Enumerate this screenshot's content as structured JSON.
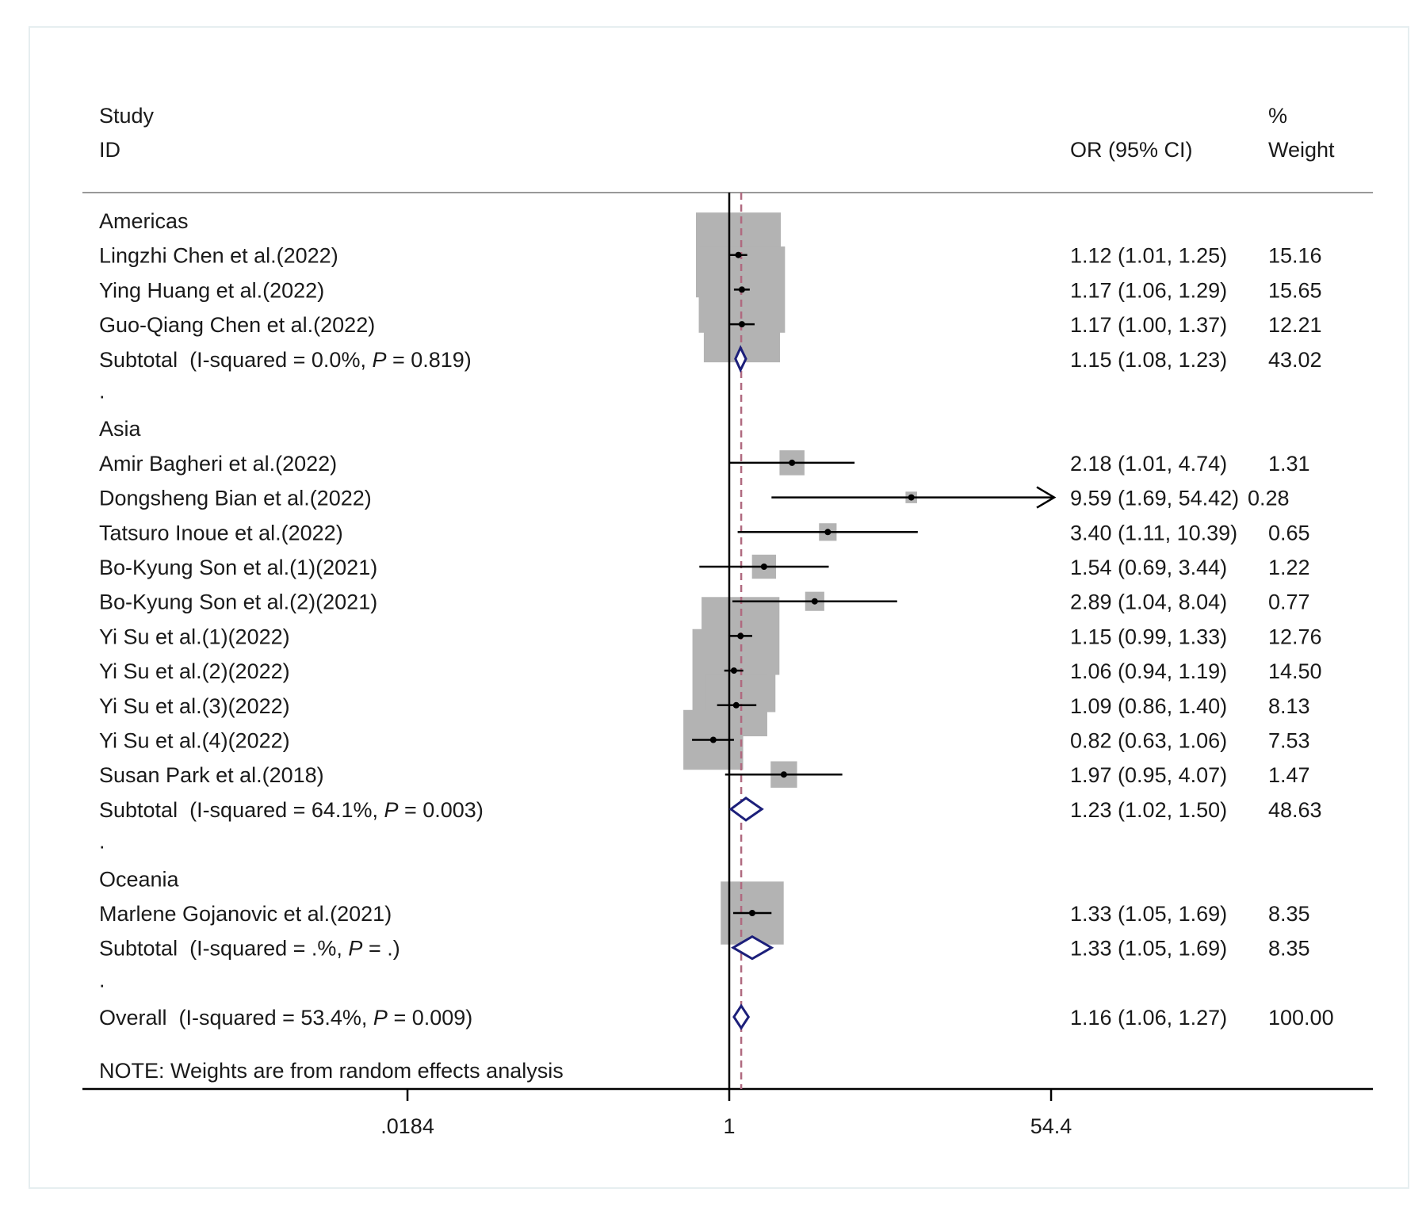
{
  "header": {
    "study_line1": "Study",
    "study_line2": "ID",
    "or_label": "OR (95% CI)",
    "weight_line1": "%",
    "weight_line2": "Weight"
  },
  "note": "NOTE: Weights are from random effects analysis",
  "colors": {
    "box": "#b3b3b3",
    "diamond": "#1c1f7a",
    "null_line": "#000000",
    "overall_line": "#b06a80",
    "text": "#1a1a1a"
  },
  "chart_data": {
    "type": "forest",
    "scale": "log",
    "null_value": 1,
    "overall_value": 1.16,
    "x_ticks": [
      {
        "value": 0.0184,
        "label": ".0184"
      },
      {
        "value": 1,
        "label": "1"
      },
      {
        "value": 54.4,
        "label": "54.4"
      }
    ],
    "rows": [
      {
        "kind": "group",
        "label": "Americas"
      },
      {
        "kind": "study",
        "label": "Lingzhi Chen et al.(2022)",
        "or": 1.12,
        "lo": 1.01,
        "hi": 1.25,
        "ci_text": "1.12 (1.01, 1.25)",
        "weight": 15.16,
        "weight_text": "15.16"
      },
      {
        "kind": "study",
        "label": "Ying Huang et al.(2022)",
        "or": 1.17,
        "lo": 1.06,
        "hi": 1.29,
        "ci_text": "1.17 (1.06, 1.29)",
        "weight": 15.65,
        "weight_text": "15.65"
      },
      {
        "kind": "study",
        "label": "Guo-Qiang Chen et al.(2022)",
        "or": 1.17,
        "lo": 1.0,
        "hi": 1.37,
        "ci_text": "1.17 (1.00, 1.37)",
        "weight": 12.21,
        "weight_text": "12.21"
      },
      {
        "kind": "subtotal",
        "label": "Subtotal  (I-squared = 0.0%, ",
        "p_label": "P",
        "p_text": " = 0.819)",
        "or": 1.15,
        "lo": 1.08,
        "hi": 1.23,
        "ci_text": "1.15 (1.08, 1.23)",
        "weight_text": "43.02"
      },
      {
        "kind": "dot",
        "label": "."
      },
      {
        "kind": "group",
        "label": "Asia"
      },
      {
        "kind": "study",
        "label": "Amir Bagheri et al.(2022)",
        "or": 2.18,
        "lo": 1.01,
        "hi": 4.74,
        "ci_text": "2.18 (1.01, 4.74)",
        "weight": 1.31,
        "weight_text": "1.31"
      },
      {
        "kind": "study",
        "label": "Dongsheng Bian et al.(2022)",
        "or": 9.59,
        "lo": 1.69,
        "hi": 54.42,
        "ci_text": "9.59 (1.69, 54.42)",
        "weight": 0.28,
        "weight_text": "0.28",
        "arrow": true
      },
      {
        "kind": "study",
        "label": "Tatsuro Inoue et al.(2022)",
        "or": 3.4,
        "lo": 1.11,
        "hi": 10.39,
        "ci_text": "3.40 (1.11, 10.39)",
        "weight": 0.65,
        "weight_text": "0.65"
      },
      {
        "kind": "study",
        "label": "Bo-Kyung Son et al.(1)(2021)",
        "or": 1.54,
        "lo": 0.69,
        "hi": 3.44,
        "ci_text": "1.54 (0.69, 3.44)",
        "weight": 1.22,
        "weight_text": "1.22"
      },
      {
        "kind": "study",
        "label": "Bo-Kyung Son et al.(2)(2021)",
        "or": 2.89,
        "lo": 1.04,
        "hi": 8.04,
        "ci_text": "2.89 (1.04, 8.04)",
        "weight": 0.77,
        "weight_text": "0.77"
      },
      {
        "kind": "study",
        "label": "Yi Su et al.(1)(2022)",
        "or": 1.15,
        "lo": 0.99,
        "hi": 1.33,
        "ci_text": "1.15 (0.99, 1.33)",
        "weight": 12.76,
        "weight_text": "12.76"
      },
      {
        "kind": "study",
        "label": "Yi Su et al.(2)(2022)",
        "or": 1.06,
        "lo": 0.94,
        "hi": 1.19,
        "ci_text": "1.06 (0.94, 1.19)",
        "weight": 14.5,
        "weight_text": "14.50"
      },
      {
        "kind": "study",
        "label": "Yi Su et al.(3)(2022)",
        "or": 1.09,
        "lo": 0.86,
        "hi": 1.4,
        "ci_text": "1.09 (0.86, 1.40)",
        "weight": 8.13,
        "weight_text": "8.13"
      },
      {
        "kind": "study",
        "label": "Yi Su et al.(4)(2022)",
        "or": 0.82,
        "lo": 0.63,
        "hi": 1.06,
        "ci_text": "0.82 (0.63, 1.06)",
        "weight": 7.53,
        "weight_text": "7.53"
      },
      {
        "kind": "study",
        "label": "Susan Park et al.(2018)",
        "or": 1.97,
        "lo": 0.95,
        "hi": 4.07,
        "ci_text": "1.97 (0.95, 4.07)",
        "weight": 1.47,
        "weight_text": "1.47"
      },
      {
        "kind": "subtotal",
        "label": "Subtotal  (I-squared = 64.1%, ",
        "p_label": "P",
        "p_text": " = 0.003)",
        "or": 1.23,
        "lo": 1.02,
        "hi": 1.5,
        "ci_text": "1.23 (1.02, 1.50)",
        "weight_text": "48.63"
      },
      {
        "kind": "dot",
        "label": "."
      },
      {
        "kind": "group",
        "label": "Oceania"
      },
      {
        "kind": "study",
        "label": "Marlene Gojanovic et al.(2021)",
        "or": 1.33,
        "lo": 1.05,
        "hi": 1.69,
        "ci_text": "1.33 (1.05, 1.69)",
        "weight": 8.35,
        "weight_text": "8.35"
      },
      {
        "kind": "subtotal",
        "label": "Subtotal  (I-squared = .%, ",
        "p_label": "P",
        "p_text": " = .)",
        "or": 1.33,
        "lo": 1.05,
        "hi": 1.69,
        "ci_text": "1.33 (1.05, 1.69)",
        "weight_text": "8.35"
      },
      {
        "kind": "dot",
        "label": "."
      },
      {
        "kind": "overall",
        "label": "Overall  (I-squared = 53.4%, ",
        "p_label": "P",
        "p_text": " = 0.009)",
        "or": 1.16,
        "lo": 1.06,
        "hi": 1.27,
        "ci_text": "1.16 (1.06, 1.27)",
        "weight_text": "100.00"
      }
    ]
  }
}
